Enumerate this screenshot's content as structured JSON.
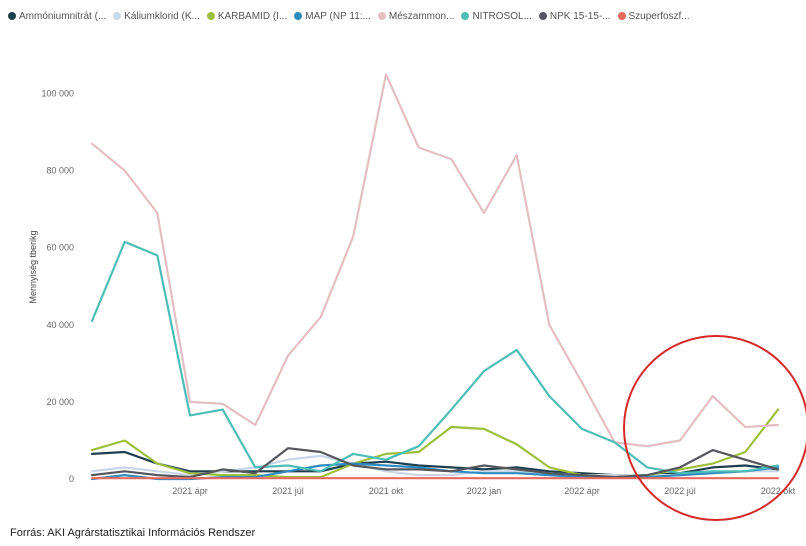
{
  "chart_data": {
    "type": "line",
    "ylabel": "Mennyiség tberikg",
    "ylim": [
      0,
      110000
    ],
    "yticks": [
      {
        "value": 0,
        "label": "0"
      },
      {
        "value": 20000,
        "label": "20 000"
      },
      {
        "value": 40000,
        "label": "40 000"
      },
      {
        "value": 60000,
        "label": "60 000"
      },
      {
        "value": 80000,
        "label": "80 000"
      },
      {
        "value": 100000,
        "label": "100 000"
      }
    ],
    "xticks": [
      {
        "index": 3,
        "label": "2021 ápr"
      },
      {
        "index": 6,
        "label": "2021 júl"
      },
      {
        "index": 9,
        "label": "2021 okt"
      },
      {
        "index": 12,
        "label": "2022 jan"
      },
      {
        "index": 15,
        "label": "2022 ápr"
      },
      {
        "index": 18,
        "label": "2022 júl"
      },
      {
        "index": 21,
        "label": "2022 okt"
      }
    ],
    "x_count": 22,
    "series": [
      {
        "name": "Ammóniumnitrát (...",
        "color": "#1f3f4f",
        "values": [
          6500,
          7000,
          4000,
          2000,
          2000,
          2000,
          2000,
          2000,
          4000,
          4500,
          3500,
          3000,
          2500,
          3000,
          2000,
          1500,
          1000,
          1000,
          1500,
          3000,
          3500,
          2500
        ]
      },
      {
        "name": "Káliumklorid (K...",
        "color": "#c8d6e8",
        "values": [
          2000,
          3000,
          2000,
          1000,
          2000,
          3000,
          5000,
          6000,
          4000,
          2000,
          1000,
          1000,
          2000,
          2000,
          1500,
          1000,
          1000,
          1000,
          1000,
          1500,
          2000,
          2000
        ]
      },
      {
        "name": "KARBAMID (I...",
        "color": "#9dbf3b",
        "values": [
          7500,
          10000,
          4000,
          1500,
          1000,
          1000,
          500,
          500,
          4000,
          6500,
          7000,
          13500,
          13000,
          9000,
          3000,
          1000,
          500,
          1000,
          2500,
          4000,
          7000,
          18000
        ]
      },
      {
        "name": "MAP (NP 11:...",
        "color": "#2e8bc0",
        "values": [
          0,
          1000,
          0,
          0,
          500,
          500,
          2000,
          3500,
          4000,
          3500,
          3000,
          2000,
          1500,
          1500,
          1000,
          500,
          500,
          500,
          1000,
          1500,
          2000,
          3000
        ]
      },
      {
        "name": "Mészammon...",
        "color": "#e4bec3",
        "values": [
          87000,
          80000,
          69000,
          20000,
          19500,
          14000,
          32000,
          42000,
          63000,
          105000,
          86000,
          83000,
          69000,
          84000,
          40000,
          25000,
          9500,
          8500,
          10000,
          21500,
          13500,
          14000
        ]
      },
      {
        "name": "NITROSOL...",
        "color": "#4dbdb5",
        "values": [
          41000,
          61500,
          58000,
          16500,
          18000,
          3000,
          3500,
          2000,
          6500,
          5000,
          8500,
          18000,
          28000,
          33500,
          21500,
          13000,
          9500,
          3000,
          1500,
          2000,
          2000,
          3500
        ]
      },
      {
        "name": "NPK 15-15-...",
        "color": "#56575c",
        "values": [
          1000,
          2000,
          1000,
          500,
          2500,
          1500,
          8000,
          7000,
          3500,
          2500,
          2500,
          2000,
          3500,
          2500,
          1500,
          1000,
          500,
          1000,
          3000,
          7500,
          5000,
          2500
        ]
      },
      {
        "name": "Szuperfoszf...",
        "color": "#e86a5e",
        "values": [
          200,
          200,
          200,
          200,
          200,
          200,
          200,
          200,
          200,
          200,
          200,
          200,
          200,
          200,
          200,
          200,
          200,
          200,
          200,
          200,
          200,
          200
        ]
      }
    ]
  },
  "source": "Forrás: AKI Agrárstatisztikai Információs Rendszer"
}
